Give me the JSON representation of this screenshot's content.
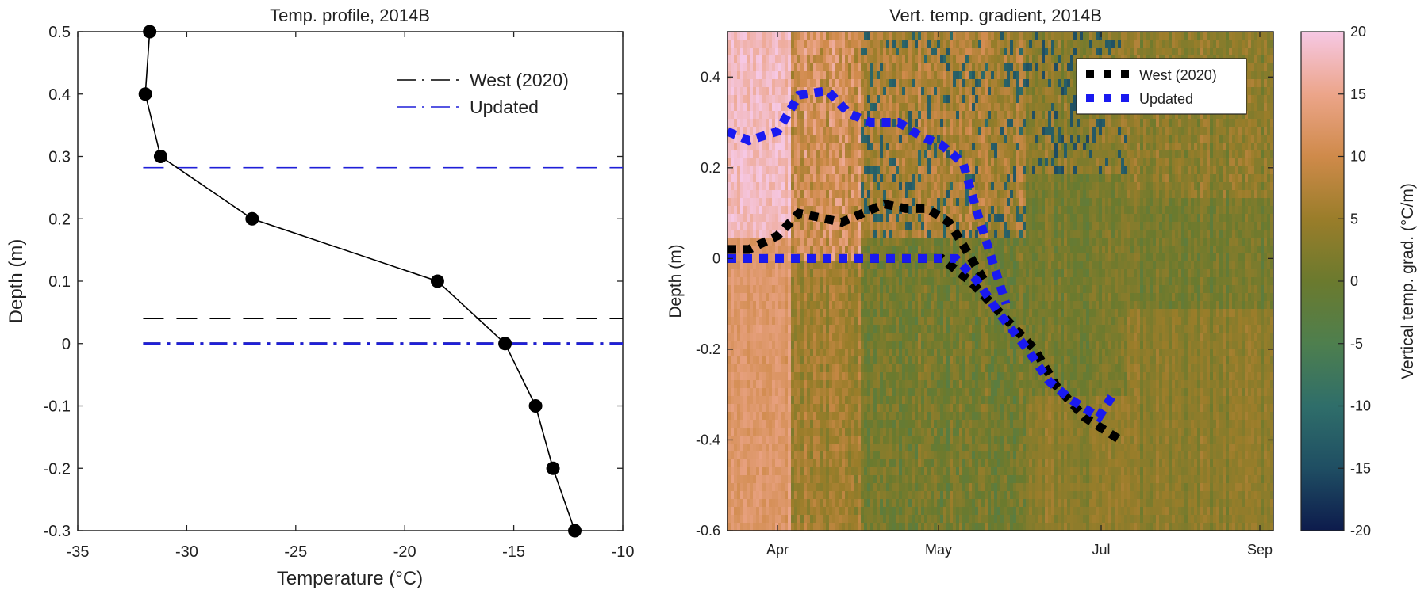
{
  "chart_data": [
    {
      "type": "line",
      "title": "Temp. profile, 2014B",
      "xlabel": "Temperature (°C)",
      "ylabel": "Depth (m)",
      "xlim": [
        -35,
        -10
      ],
      "ylim": [
        -0.3,
        0.5
      ],
      "xticks": [
        "-35",
        "-30",
        "-25",
        "-20",
        "-15",
        "-10"
      ],
      "yticks": [
        "-0.3",
        "-0.2",
        "-0.1",
        "0",
        "0.1",
        "0.2",
        "0.3",
        "0.4",
        "0.5"
      ],
      "profile": {
        "x": [
          -31.7,
          -31.9,
          -31.2,
          -27.0,
          -18.5,
          -15.4,
          -14.0,
          -13.2,
          -12.2
        ],
        "y": [
          0.5,
          0.4,
          0.3,
          0.2,
          0.1,
          0.0,
          -0.1,
          -0.2,
          -0.3
        ],
        "color": "#000000"
      },
      "legend": {
        "position": "top-right",
        "entries": [
          {
            "label": "West (2020)",
            "color": "#000000"
          },
          {
            "label": "Updated",
            "color": "#1f1fd8"
          }
        ]
      },
      "reference_lines": [
        {
          "series": "West (2020)",
          "depths": [
            0.04,
            0.0
          ],
          "color": "#000000"
        },
        {
          "series": "Updated",
          "depths": [
            0.282,
            0.0
          ],
          "color": "#1f1fd8"
        }
      ],
      "grid": false
    },
    {
      "type": "heatmap",
      "title": "Vert. temp. gradient, 2014B",
      "ylabel": "Depth (m)",
      "xticks": [
        "Apr",
        "May",
        "Jul",
        "Sep"
      ],
      "yticks": [
        "-0.6",
        "-0.4",
        "-0.2",
        "0",
        "0.2",
        "0.4"
      ],
      "ylim": [
        -0.6,
        0.5
      ],
      "colorbar": {
        "label": "Vertical temp. grad. (°C/m)",
        "range": [
          -20,
          20
        ],
        "ticks": [
          "-20",
          "-15",
          "-10",
          "-5",
          "0",
          "5",
          "10",
          "15",
          "20"
        ],
        "colors": [
          "#0d1b4c",
          "#1f4e63",
          "#2f6e6a",
          "#4e7f4e",
          "#6b7a2e",
          "#9a7d2a",
          "#cf8a4a",
          "#eca58a",
          "#f6c8e4"
        ]
      },
      "legend": {
        "position": "top-right",
        "entries": [
          {
            "label": "West (2020)",
            "color": "#000000"
          },
          {
            "label": "Updated",
            "color": "#1a1af0"
          }
        ]
      },
      "series": [
        {
          "name": "West (2020)",
          "x_month": [
            3.6,
            3.75,
            3.95,
            4.1,
            4.25,
            4.4,
            4.55,
            4.7,
            4.85,
            5.0,
            5.15,
            5.25,
            5.4
          ],
          "y_upper": [
            0.02,
            0.02,
            0.05,
            0.1,
            0.09,
            0.08,
            0.1,
            0.12,
            0.11,
            0.11,
            0.08,
            0.03,
            -0.05
          ],
          "x_lower": [
            3.6,
            4.0,
            4.4,
            4.8,
            5.1,
            5.3,
            5.45,
            5.6,
            5.75,
            5.9,
            6.1,
            6.25,
            6.35
          ],
          "y_lower": [
            0.0,
            0.0,
            0.0,
            0.0,
            0.0,
            -0.05,
            -0.1,
            -0.15,
            -0.2,
            -0.28,
            -0.35,
            -0.38,
            -0.4
          ]
        },
        {
          "name": "Updated",
          "x_month": [
            3.6,
            3.75,
            3.95,
            4.1,
            4.3,
            4.45,
            4.6,
            4.8,
            4.95,
            5.1,
            5.25,
            5.35,
            5.45,
            5.55
          ],
          "y_upper": [
            0.28,
            0.26,
            0.28,
            0.36,
            0.37,
            0.32,
            0.3,
            0.3,
            0.27,
            0.25,
            0.21,
            0.1,
            0.0,
            -0.1
          ],
          "x_lower": [
            3.6,
            4.0,
            4.4,
            4.8,
            5.2,
            5.35,
            5.5,
            5.7,
            5.85,
            6.0,
            6.2,
            6.3
          ],
          "y_lower": [
            0.0,
            0.0,
            0.0,
            0.0,
            0.0,
            -0.05,
            -0.12,
            -0.2,
            -0.27,
            -0.31,
            -0.35,
            -0.3
          ]
        }
      ]
    }
  ]
}
